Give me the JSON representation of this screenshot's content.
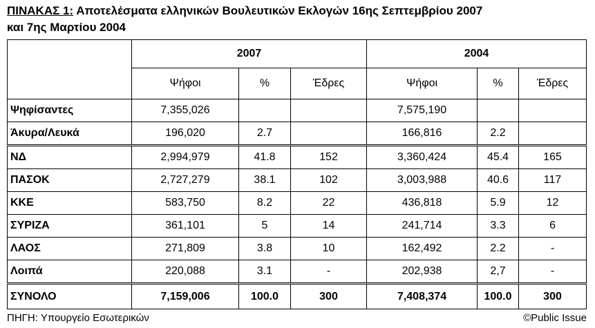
{
  "title": {
    "label": "ΠΙΝΑΚΑΣ 1:",
    "line1": "Αποτελέσματα ελληνικών Βουλευτικών Εκλογών 16ης Σεπτεμβρίου 2007",
    "line2": "και 7ης Μαρτίου 2004"
  },
  "table": {
    "years": [
      "2007",
      "2004"
    ],
    "columns": [
      "Ψήφοι",
      "%",
      "Έδρες",
      "Ψήφοι",
      "%",
      "Έδρες"
    ],
    "rows": [
      [
        "Ψηφίσαντες",
        "7,355,026",
        null,
        null,
        "7,575,190",
        null,
        null
      ],
      [
        "Άκυρα/Λευκά",
        "196,020",
        "2.7",
        null,
        "166,816",
        "2.2",
        null
      ],
      [
        "ΝΔ",
        "2,994,979",
        "41.8",
        "152",
        "3,360,424",
        "45.4",
        "165"
      ],
      [
        "ΠΑΣΟΚ",
        "2,727,279",
        "38.1",
        "102",
        "3,003,988",
        "40.6",
        "117"
      ],
      [
        "ΚΚΕ",
        "583,750",
        "8.2",
        "22",
        "436,818",
        "5.9",
        "12"
      ],
      [
        "ΣΥΡΙΖΑ",
        "361,101",
        "5",
        "14",
        "241,714",
        "3.3",
        "6"
      ],
      [
        "ΛΑΟΣ",
        "271,809",
        "3.8",
        "10",
        "162,492",
        "2.2",
        "-"
      ],
      [
        "Λοιπά",
        "220,088",
        "3.1",
        "-",
        "202,938",
        "2,7",
        "-"
      ],
      [
        "ΣΥΝΟΛΟ",
        "7,159,006",
        "100.0",
        "300",
        "7,408,374",
        "100.0",
        "300"
      ]
    ]
  },
  "footer": {
    "source_label": "ΠΗΓΗ:",
    "source": "Υπουργείο Εσωτερικών",
    "copyright": "©Public Issue"
  }
}
